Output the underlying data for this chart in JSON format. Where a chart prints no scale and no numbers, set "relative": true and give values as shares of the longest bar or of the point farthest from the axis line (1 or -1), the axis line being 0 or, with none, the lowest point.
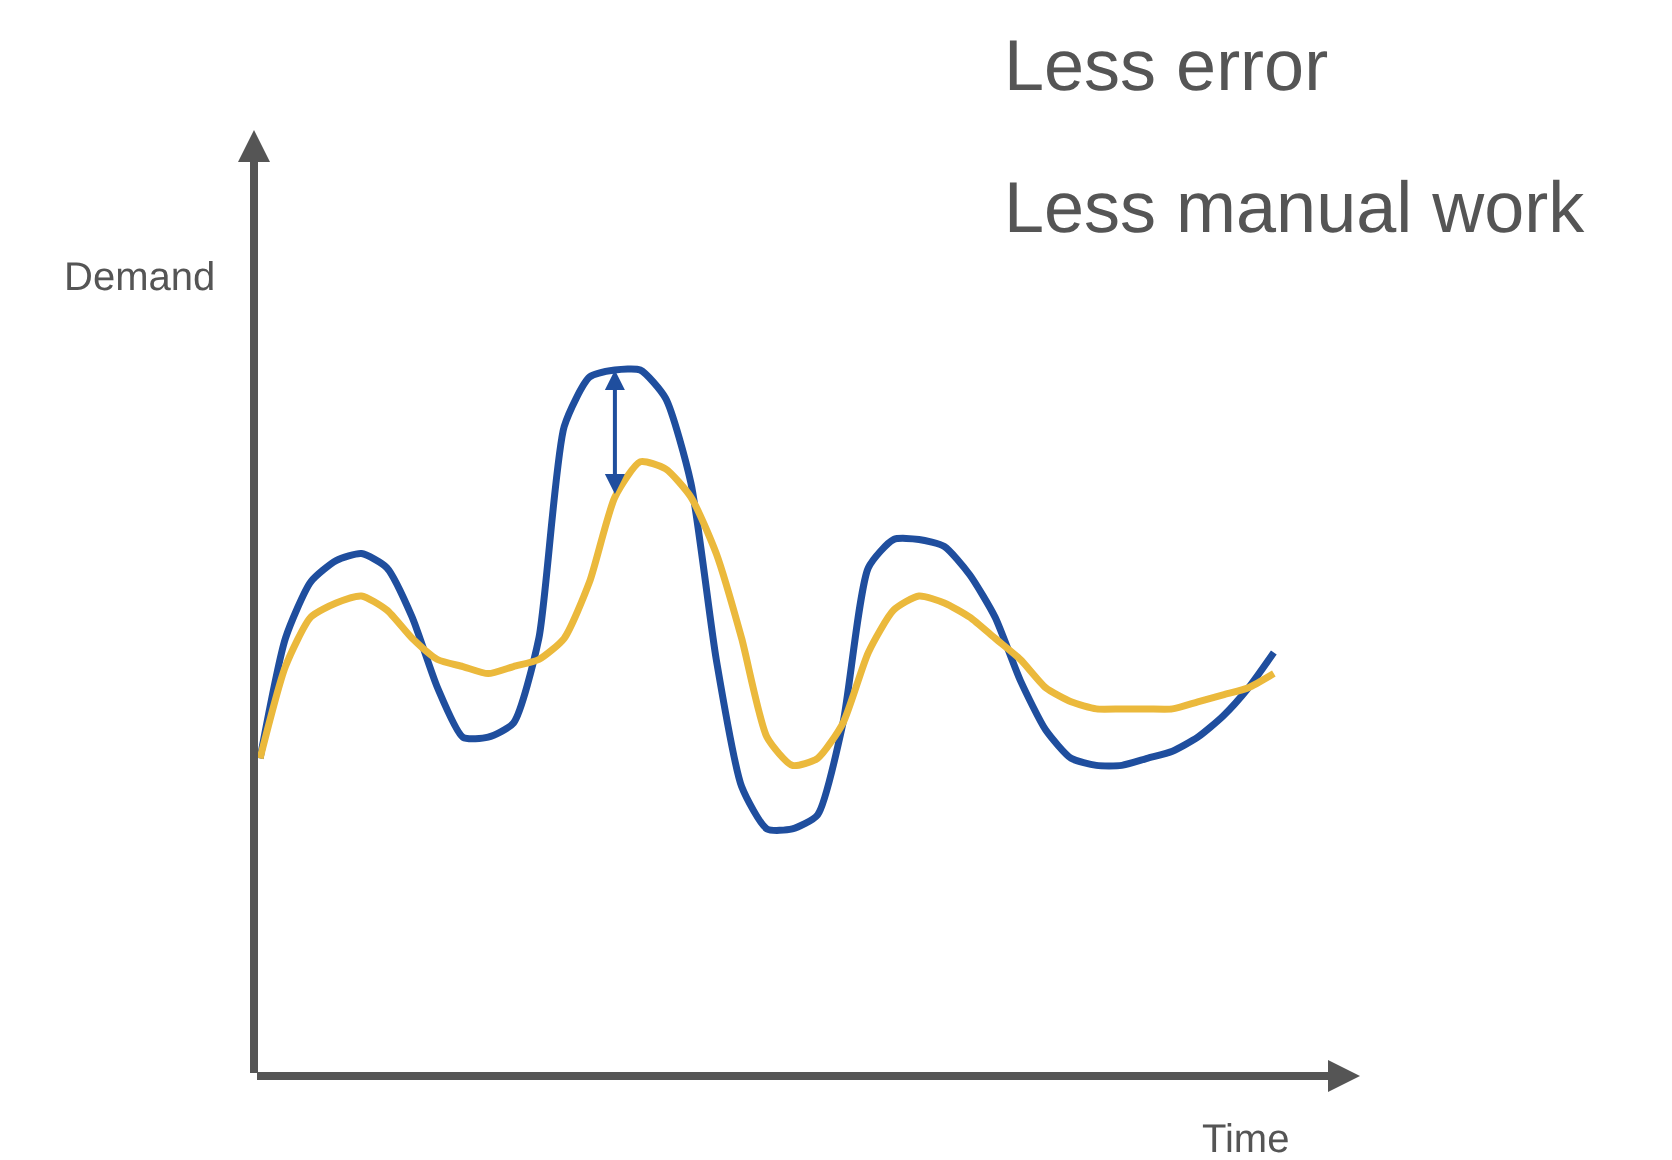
{
  "chart_data": {
    "type": "line",
    "relative": true,
    "xlabel": "Time",
    "ylabel": "Demand",
    "annotations": [
      "Less error",
      "Less manual work"
    ],
    "marker": "none",
    "line_style": "solid",
    "categories": [
      null,
      null,
      null,
      null,
      null,
      null,
      null,
      null,
      null,
      null,
      null,
      null,
      null,
      null,
      null,
      null,
      null,
      null,
      null,
      null,
      null,
      null,
      null,
      null,
      null,
      null,
      null,
      null,
      null,
      null,
      null,
      null,
      null,
      null,
      null,
      null,
      null,
      null,
      null,
      null,
      null
    ],
    "series": [
      {
        "color": "#1f4e9e",
        "values": [
          0.45,
          0.62,
          0.7,
          0.73,
          0.74,
          0.72,
          0.65,
          0.55,
          0.48,
          0.48,
          0.5,
          0.62,
          0.92,
          0.99,
          1.0,
          1.0,
          0.96,
          0.84,
          0.59,
          0.41,
          0.35,
          0.35,
          0.37,
          0.5,
          0.72,
          0.76,
          0.76,
          0.75,
          0.71,
          0.65,
          0.56,
          0.49,
          0.45,
          0.44,
          0.44,
          0.45,
          0.46,
          0.48,
          0.51,
          0.55,
          0.6
        ]
      },
      {
        "color": "#ebb93c",
        "values": [
          0.45,
          0.58,
          0.65,
          0.67,
          0.68,
          0.66,
          0.62,
          0.59,
          0.58,
          0.57,
          0.58,
          0.59,
          0.62,
          0.7,
          0.82,
          0.87,
          0.86,
          0.82,
          0.74,
          0.62,
          0.48,
          0.44,
          0.45,
          0.5,
          0.6,
          0.66,
          0.68,
          0.67,
          0.65,
          0.62,
          0.59,
          0.55,
          0.53,
          0.52,
          0.52,
          0.52,
          0.52,
          0.53,
          0.54,
          0.55,
          0.57
        ]
      }
    ]
  }
}
